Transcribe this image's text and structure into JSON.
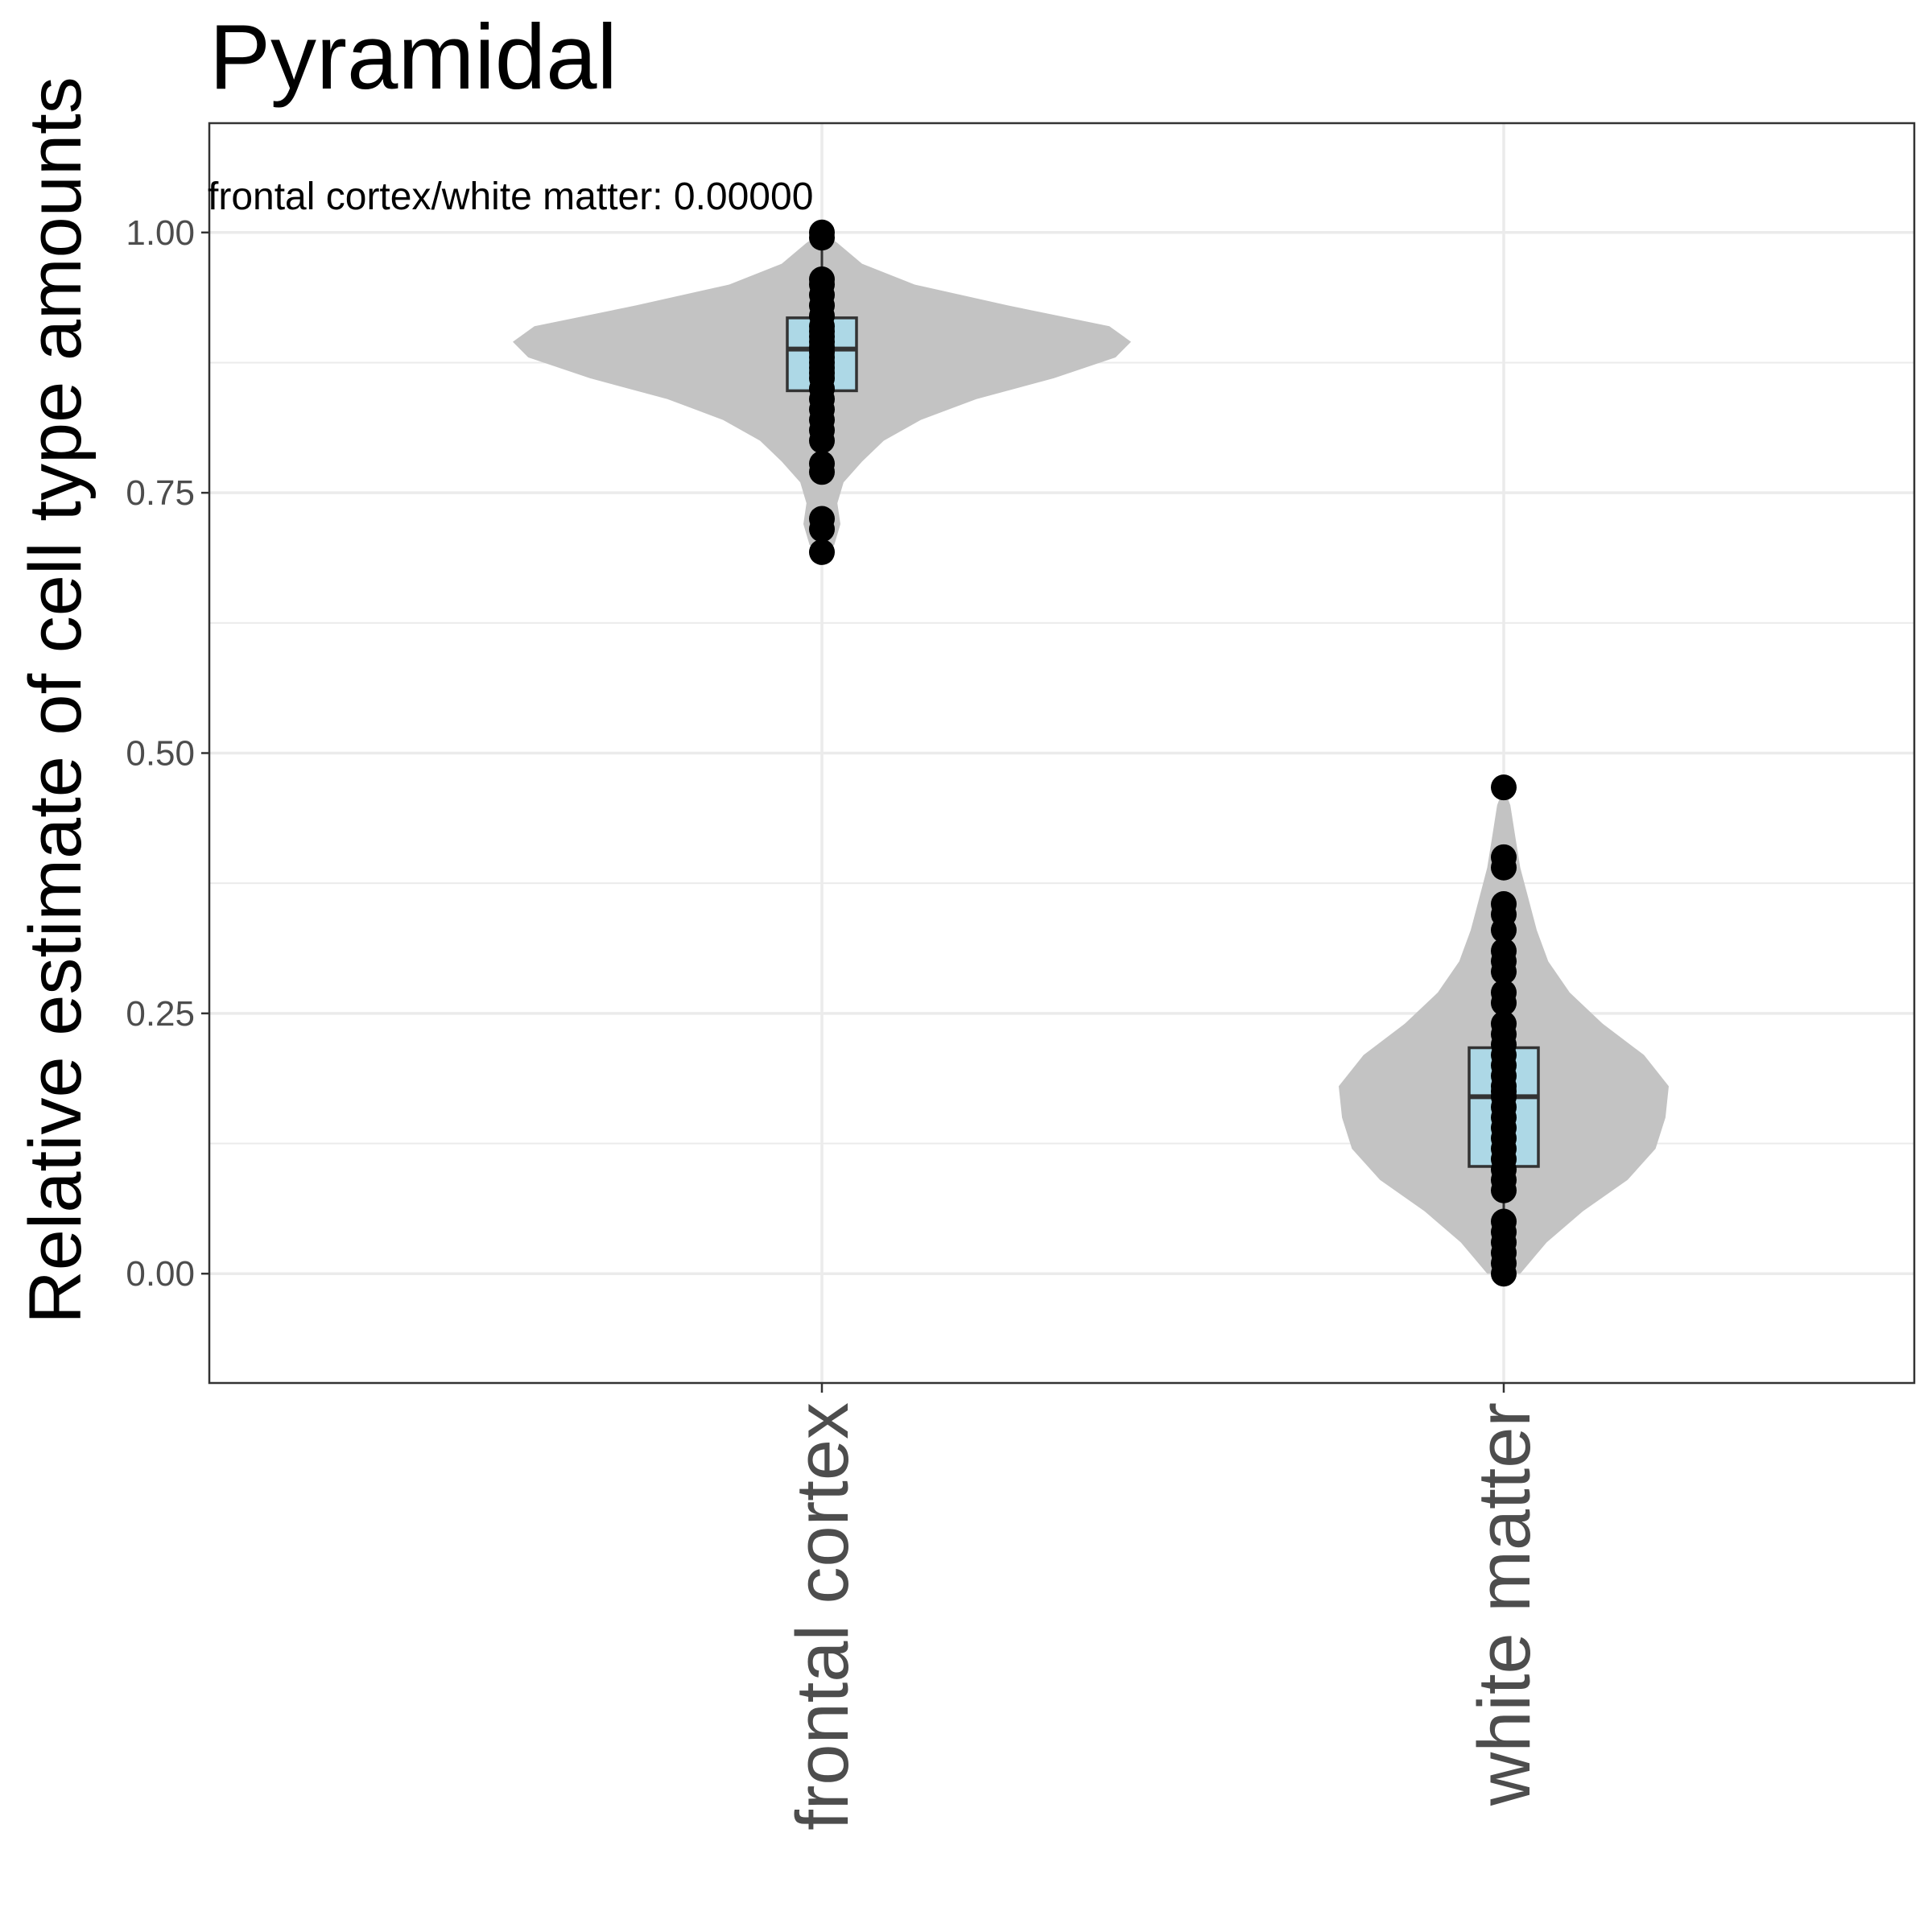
{
  "colors": {
    "violin_fill": "#c3c3c3",
    "box_fill": "#add8e6",
    "box_stroke": "#333333",
    "point_fill": "#000000",
    "grid": "#ebebeb",
    "panel_border": "#333333",
    "tick_text": "#4d4d4d"
  },
  "chart_data": {
    "type": "violin",
    "title": "Pyramidal",
    "xlabel": "",
    "ylabel": "Relative estimate of cell type amounts",
    "ylim": [
      -0.105,
      1.105
    ],
    "yticks": [
      0,
      0.25,
      0.5,
      0.75,
      1
    ],
    "ytick_labels": [
      "0.00",
      "0.25",
      "0.50",
      "0.75",
      "1.00"
    ],
    "grid": true,
    "legend": "none",
    "annotation": "frontal cortex/white matter: 0.00000",
    "categories": [
      "frontal cortex",
      "white matter"
    ],
    "groups": [
      {
        "category": "frontal cortex",
        "box": {
          "q1": 0.848,
          "median": 0.888,
          "q3": 0.918,
          "whisker_low": 0.777,
          "whisker_high": 1.0
        },
        "violin_profile": [
          [
            0.69,
            0.0
          ],
          [
            0.7,
            0.04
          ],
          [
            0.72,
            0.06
          ],
          [
            0.74,
            0.05
          ],
          [
            0.76,
            0.07
          ],
          [
            0.78,
            0.13
          ],
          [
            0.8,
            0.2
          ],
          [
            0.82,
            0.32
          ],
          [
            0.84,
            0.5
          ],
          [
            0.86,
            0.75
          ],
          [
            0.88,
            0.95
          ],
          [
            0.895,
            1.0
          ],
          [
            0.91,
            0.93
          ],
          [
            0.93,
            0.6
          ],
          [
            0.95,
            0.3
          ],
          [
            0.97,
            0.13
          ],
          [
            0.99,
            0.05
          ],
          [
            1.0,
            0.0
          ]
        ],
        "points": [
          0.693,
          0.715,
          0.725,
          0.77,
          0.778,
          0.8,
          0.81,
          0.82,
          0.83,
          0.84,
          0.85,
          0.86,
          0.865,
          0.87,
          0.875,
          0.88,
          0.885,
          0.89,
          0.895,
          0.9,
          0.905,
          0.91,
          0.92,
          0.93,
          0.94,
          0.95,
          0.955,
          0.995,
          1.0
        ]
      },
      {
        "category": "white matter",
        "box": {
          "q1": 0.103,
          "median": 0.17,
          "q3": 0.217,
          "whisker_low": 0.0,
          "whisker_high": 0.36
        },
        "violin_profile": [
          [
            0.0,
            0.1
          ],
          [
            0.03,
            0.26
          ],
          [
            0.06,
            0.48
          ],
          [
            0.09,
            0.75
          ],
          [
            0.12,
            0.92
          ],
          [
            0.15,
            0.98
          ],
          [
            0.18,
            1.0
          ],
          [
            0.21,
            0.85
          ],
          [
            0.24,
            0.6
          ],
          [
            0.27,
            0.4
          ],
          [
            0.3,
            0.27
          ],
          [
            0.33,
            0.2
          ],
          [
            0.36,
            0.15
          ],
          [
            0.39,
            0.1
          ],
          [
            0.42,
            0.07
          ],
          [
            0.45,
            0.04
          ],
          [
            0.467,
            0.0
          ]
        ],
        "points": [
          0.0,
          0.01,
          0.02,
          0.03,
          0.04,
          0.05,
          0.08,
          0.09,
          0.1,
          0.11,
          0.12,
          0.13,
          0.14,
          0.15,
          0.16,
          0.17,
          0.175,
          0.18,
          0.19,
          0.2,
          0.21,
          0.22,
          0.23,
          0.24,
          0.26,
          0.27,
          0.29,
          0.3,
          0.31,
          0.33,
          0.345,
          0.355,
          0.39,
          0.4,
          0.467
        ]
      }
    ]
  }
}
